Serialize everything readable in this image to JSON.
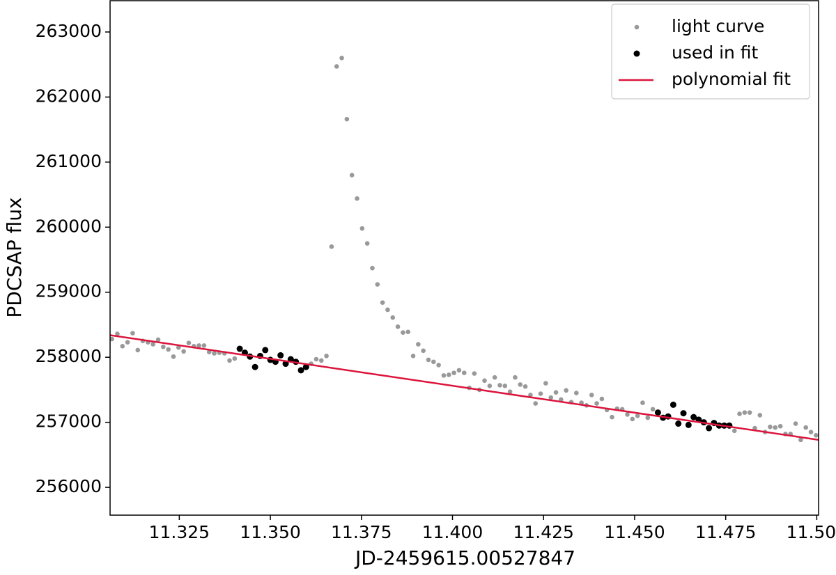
{
  "chart_data": {
    "type": "scatter",
    "x_label": "JD-2459615.00527847",
    "y_label": "PDCSAP flux",
    "xlim": [
      11.306,
      11.5005
    ],
    "ylim": [
      255573,
      263481
    ],
    "xticks": [
      {
        "value": 11.325,
        "label": "11.325"
      },
      {
        "value": 11.35,
        "label": "11.350"
      },
      {
        "value": 11.375,
        "label": "11.375"
      },
      {
        "value": 11.4,
        "label": "11.400"
      },
      {
        "value": 11.425,
        "label": "11.425"
      },
      {
        "value": 11.45,
        "label": "11.450"
      },
      {
        "value": 11.475,
        "label": "11.475"
      },
      {
        "value": 11.5,
        "label": "11.500"
      }
    ],
    "yticks": [
      256000,
      257000,
      258000,
      259000,
      260000,
      261000,
      262000,
      263000
    ],
    "legend": "upper right",
    "series": [
      {
        "name": "light curve",
        "type": "scatter",
        "color": "#999999",
        "x": [
          11.3065,
          11.308,
          11.3094,
          11.3108,
          11.3122,
          11.3136,
          11.315,
          11.3164,
          11.3178,
          11.3192,
          11.3206,
          11.322,
          11.3234,
          11.3248,
          11.3262,
          11.3276,
          11.329,
          11.3304,
          11.3318,
          11.3332,
          11.3346,
          11.336,
          11.3374,
          11.3388,
          11.3402,
          11.3612,
          11.3626,
          11.364,
          11.3654,
          11.3668,
          11.3682,
          11.3696,
          11.371,
          11.3724,
          11.3738,
          11.3752,
          11.3766,
          11.378,
          11.3794,
          11.3808,
          11.3822,
          11.3836,
          11.385,
          11.3864,
          11.3878,
          11.3892,
          11.3906,
          11.392,
          11.3934,
          11.3948,
          11.3962,
          11.3976,
          11.399,
          11.4004,
          11.4018,
          11.4032,
          11.4046,
          11.406,
          11.4074,
          11.4088,
          11.4102,
          11.4116,
          11.413,
          11.4144,
          11.4158,
          11.4172,
          11.4186,
          11.42,
          11.4214,
          11.4228,
          11.4242,
          11.4256,
          11.427,
          11.4284,
          11.4298,
          11.4312,
          11.4326,
          11.434,
          11.4354,
          11.4368,
          11.4382,
          11.4396,
          11.441,
          11.4424,
          11.4438,
          11.4452,
          11.4466,
          11.448,
          11.4494,
          11.4508,
          11.4522,
          11.4536,
          11.455,
          11.4774,
          11.4788,
          11.4802,
          11.4816,
          11.483,
          11.4844,
          11.4858,
          11.4872,
          11.4886,
          11.49,
          11.4914,
          11.4928,
          11.4942,
          11.4956,
          11.497,
          11.4984,
          11.4998
        ],
        "values": [
          258280,
          258360,
          258170,
          258230,
          258370,
          258110,
          258250,
          258230,
          258200,
          258270,
          258160,
          258120,
          258010,
          258150,
          258090,
          258220,
          258170,
          258180,
          258180,
          258080,
          258060,
          258070,
          258060,
          257950,
          257980,
          257900,
          257970,
          257950,
          258020,
          259700,
          262470,
          262600,
          261660,
          260800,
          260440,
          259980,
          259750,
          259370,
          259120,
          258840,
          258730,
          258610,
          258470,
          258380,
          258390,
          258020,
          258200,
          258100,
          257960,
          257930,
          257880,
          257720,
          257730,
          257760,
          257800,
          257760,
          257530,
          257750,
          257500,
          257640,
          257560,
          257690,
          257570,
          257560,
          257470,
          257690,
          257580,
          257550,
          257420,
          257290,
          257440,
          257600,
          257380,
          257460,
          257350,
          257490,
          257310,
          257450,
          257300,
          257260,
          257420,
          257290,
          257360,
          257190,
          257080,
          257210,
          257200,
          257120,
          257050,
          257100,
          257300,
          257070,
          257200,
          256870,
          257130,
          257150,
          257150,
          256910,
          257110,
          256850,
          256930,
          256920,
          256940,
          256820,
          256820,
          256980,
          256730,
          256920,
          256850,
          256800
        ]
      },
      {
        "name": "used in fit",
        "type": "scatter",
        "color": "#000000",
        "x": [
          11.3416,
          11.343,
          11.3444,
          11.3458,
          11.3472,
          11.3486,
          11.35,
          11.3514,
          11.3528,
          11.3542,
          11.3556,
          11.357,
          11.3584,
          11.3598,
          11.4564,
          11.4578,
          11.4592,
          11.4606,
          11.462,
          11.4634,
          11.4648,
          11.4662,
          11.4676,
          11.469,
          11.4704,
          11.4718,
          11.4732,
          11.4746,
          11.476
        ],
        "values": [
          258130,
          258070,
          258010,
          257850,
          258020,
          258110,
          257960,
          257930,
          258030,
          257900,
          257970,
          257930,
          257800,
          257850,
          257150,
          257070,
          257090,
          257270,
          256980,
          257140,
          256960,
          257080,
          257040,
          257000,
          256910,
          256990,
          256950,
          256950,
          256950
        ]
      },
      {
        "name": "polynomial fit",
        "type": "line",
        "color": "#dc143c",
        "x": [
          11.306,
          11.5005
        ],
        "values": [
          258340,
          256730
        ]
      }
    ]
  }
}
